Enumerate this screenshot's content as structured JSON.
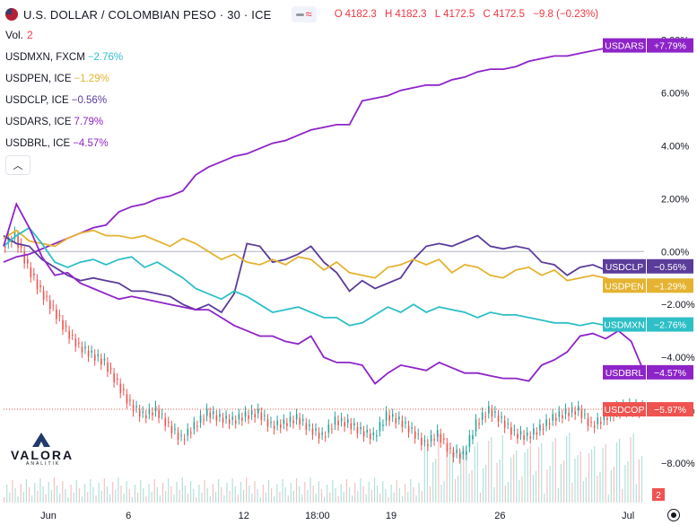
{
  "header": {
    "title": "U.S. DOLLAR / COLOMBIAN PESO · 30 · ICE",
    "ohlc": {
      "o_label": "O",
      "o": "4182.3",
      "h_label": "H",
      "h": "4182.3",
      "l_label": "L",
      "l": "4172.5",
      "c_label": "C",
      "c": "4172.5",
      "change": "−9.8 (−0.23%)"
    }
  },
  "volume": {
    "label": "Vol.",
    "value": "2"
  },
  "legend": [
    {
      "symbol": "USDMXN, FXCM",
      "change": "−2.76%",
      "color": "#2ebfc7"
    },
    {
      "symbol": "USDPEN, ICE",
      "change": "−1.29%",
      "color": "#e5b331"
    },
    {
      "symbol": "USDCLP, ICE",
      "change": "−0.56%",
      "color": "#5b3c9a"
    },
    {
      "symbol": "USDARS, ICE",
      "change": "7.79%",
      "color": "#8e24c8"
    },
    {
      "symbol": "USDBRL, ICE",
      "change": "−4.57%",
      "color": "#8e24c8"
    }
  ],
  "logo": {
    "name": "VALORA",
    "subtitle": "ANALITIK"
  },
  "icons": {
    "collapse": "chevron-up-icon",
    "settings": "settings-icon",
    "flag": "us-flag-icon"
  },
  "chart_data": {
    "type": "line",
    "y_axis": {
      "ticks": [
        "8.00%",
        "6.00%",
        "4.00%",
        "2.00%",
        "0.00%",
        "−2.00%",
        "−4.00%",
        "−6.00%",
        "−8.00%"
      ],
      "range": [
        -9.5,
        8.5
      ],
      "unit": "%"
    },
    "x_axis": {
      "ticks": [
        "Jun",
        "6",
        "12",
        "18:00",
        "19",
        "26",
        "Jul"
      ]
    },
    "volume_badge": "2",
    "series": [
      {
        "name": "USDARS",
        "end_label": "+7.79%",
        "color": "#8e24c8",
        "x": [
          0,
          2,
          4,
          6,
          8,
          10,
          12,
          14,
          16,
          18,
          20,
          22,
          24,
          26,
          28,
          30,
          32,
          34,
          36,
          38,
          40,
          42,
          44,
          46,
          48,
          50,
          52,
          54,
          56,
          58,
          60,
          62,
          64,
          66,
          68,
          70,
          72,
          74,
          76,
          78,
          80,
          82,
          84,
          86,
          88,
          90,
          92,
          94,
          96,
          98,
          100
        ],
        "y": [
          -0.4,
          -0.2,
          -0.1,
          0.1,
          0.3,
          0.5,
          0.7,
          0.9,
          1.0,
          1.5,
          1.7,
          1.8,
          2.0,
          2.1,
          2.3,
          2.9,
          3.2,
          3.4,
          3.6,
          3.7,
          3.9,
          4.1,
          4.2,
          4.4,
          4.6,
          4.7,
          4.8,
          4.8,
          5.7,
          5.8,
          5.9,
          6.1,
          6.2,
          6.3,
          6.3,
          6.5,
          6.6,
          6.8,
          6.9,
          6.9,
          7.0,
          7.2,
          7.3,
          7.4,
          7.4,
          7.5,
          7.6,
          7.7,
          7.8,
          7.8,
          7.8
        ]
      },
      {
        "name": "USDCLP",
        "end_label": "−0.56%",
        "color": "#5b3c9a",
        "x": [
          0,
          2,
          4,
          6,
          8,
          10,
          12,
          14,
          16,
          18,
          20,
          22,
          24,
          26,
          28,
          30,
          32,
          34,
          36,
          38,
          40,
          42,
          44,
          46,
          48,
          50,
          52,
          54,
          56,
          58,
          60,
          62,
          64,
          66,
          68,
          70,
          72,
          74,
          76,
          78,
          80,
          82,
          84,
          86,
          88,
          90,
          92,
          94,
          96,
          98,
          100
        ],
        "y": [
          0.6,
          0.3,
          0.2,
          -0.3,
          -0.6,
          -0.9,
          -1.1,
          -1.0,
          -1.1,
          -1.2,
          -1.5,
          -1.5,
          -1.6,
          -1.7,
          -2.0,
          -2.2,
          -2.0,
          -2.3,
          -1.6,
          0.3,
          0.2,
          -0.4,
          -0.3,
          -0.1,
          0.2,
          -0.4,
          -0.8,
          -1.5,
          -1.1,
          -1.4,
          -1.2,
          -1.0,
          -0.3,
          0.2,
          0.3,
          0.2,
          0.4,
          0.6,
          0.2,
          0.1,
          0.2,
          0.1,
          -0.4,
          -0.5,
          -0.9,
          -0.6,
          -0.5,
          -0.7,
          -0.4,
          -0.5,
          -0.56
        ]
      },
      {
        "name": "USDPEN",
        "end_label": "−1.29%",
        "color": "#e5b331",
        "x": [
          0,
          2,
          4,
          6,
          8,
          10,
          12,
          14,
          16,
          18,
          20,
          22,
          24,
          26,
          28,
          30,
          32,
          34,
          36,
          38,
          40,
          42,
          44,
          46,
          48,
          50,
          52,
          54,
          56,
          58,
          60,
          62,
          64,
          66,
          68,
          70,
          72,
          74,
          76,
          78,
          80,
          82,
          84,
          86,
          88,
          90,
          92,
          94,
          96,
          98,
          100
        ],
        "y": [
          0.5,
          0.8,
          0.4,
          0.3,
          0.2,
          0.5,
          0.7,
          0.8,
          0.6,
          0.6,
          0.5,
          0.6,
          0.4,
          0.2,
          0.5,
          0.3,
          0.0,
          -0.3,
          -0.1,
          -0.4,
          -0.5,
          -0.3,
          -0.5,
          -0.2,
          -0.3,
          -0.7,
          -0.4,
          -0.8,
          -0.9,
          -1.0,
          -0.6,
          -0.5,
          -0.3,
          -0.5,
          -0.3,
          -0.8,
          -0.5,
          -0.6,
          -0.9,
          -1.0,
          -0.7,
          -0.6,
          -0.9,
          -0.7,
          -1.1,
          -1.0,
          -0.9,
          -1.0,
          -1.2,
          -1.3,
          -1.29
        ]
      },
      {
        "name": "USDMXN",
        "end_label": "−2.76%",
        "color": "#2ebfc7",
        "x": [
          0,
          2,
          4,
          6,
          8,
          10,
          12,
          14,
          16,
          18,
          20,
          22,
          24,
          26,
          28,
          30,
          32,
          34,
          36,
          38,
          40,
          42,
          44,
          46,
          48,
          50,
          52,
          54,
          56,
          58,
          60,
          62,
          64,
          66,
          68,
          70,
          72,
          74,
          76,
          78,
          80,
          82,
          84,
          86,
          88,
          90,
          92,
          94,
          96,
          98,
          100
        ],
        "y": [
          0.2,
          0.6,
          0.9,
          0.3,
          -0.4,
          -0.6,
          -0.4,
          -0.3,
          -0.5,
          -0.3,
          -0.2,
          -0.6,
          -0.4,
          -0.7,
          -1.0,
          -1.4,
          -1.6,
          -1.8,
          -1.5,
          -1.7,
          -2.0,
          -2.3,
          -2.2,
          -2.1,
          -2.3,
          -2.5,
          -2.5,
          -2.8,
          -2.7,
          -2.4,
          -2.1,
          -2.3,
          -2.0,
          -2.3,
          -2.1,
          -2.2,
          -2.3,
          -2.5,
          -2.3,
          -2.4,
          -2.4,
          -2.5,
          -2.6,
          -2.7,
          -2.7,
          -2.8,
          -2.7,
          -2.8,
          -2.6,
          -2.8,
          -2.76
        ]
      },
      {
        "name": "USDBRL",
        "end_label": "−4.57%",
        "color": "#8e24c8",
        "x": [
          0,
          2,
          4,
          6,
          8,
          10,
          12,
          14,
          16,
          18,
          20,
          22,
          24,
          26,
          28,
          30,
          32,
          34,
          36,
          38,
          40,
          42,
          44,
          46,
          48,
          50,
          52,
          54,
          56,
          58,
          60,
          62,
          64,
          66,
          68,
          70,
          72,
          74,
          76,
          78,
          80,
          82,
          84,
          86,
          88,
          90,
          92,
          94,
          96,
          98,
          100
        ],
        "y": [
          0.2,
          1.8,
          0.9,
          -0.2,
          -0.9,
          -0.8,
          -1.2,
          -1.4,
          -1.6,
          -1.8,
          -1.7,
          -1.8,
          -1.9,
          -2.0,
          -2.1,
          -2.2,
          -2.2,
          -2.5,
          -2.8,
          -3.0,
          -3.2,
          -3.2,
          -3.4,
          -3.5,
          -3.2,
          -4.0,
          -4.2,
          -4.2,
          -4.3,
          -5.0,
          -4.6,
          -4.3,
          -4.4,
          -4.5,
          -4.2,
          -4.4,
          -4.6,
          -4.6,
          -4.7,
          -4.8,
          -4.8,
          -4.9,
          -4.3,
          -4.1,
          -3.8,
          -3.2,
          -3.1,
          -3.3,
          -3.0,
          -3.4,
          -4.57
        ]
      },
      {
        "name": "USDCOP",
        "end_label": "−5.97%",
        "color": "#ef5350",
        "style": "candles",
        "x": [
          0,
          2,
          4,
          6,
          8,
          10,
          12,
          14,
          16,
          18,
          20,
          22,
          24,
          26,
          28,
          30,
          32,
          34,
          36,
          38,
          40,
          42,
          44,
          46,
          48,
          50,
          52,
          54,
          56,
          58,
          60,
          62,
          64,
          66,
          68,
          70,
          72,
          74,
          76,
          78,
          80,
          82,
          84,
          86,
          88,
          90,
          92,
          94,
          96,
          98,
          100
        ],
        "y": [
          0.2,
          0.6,
          -0.6,
          -1.5,
          -2.2,
          -3.0,
          -3.6,
          -3.9,
          -4.2,
          -5.0,
          -5.8,
          -6.2,
          -6.0,
          -6.6,
          -7.1,
          -6.6,
          -6.1,
          -6.3,
          -6.4,
          -6.2,
          -6.1,
          -6.6,
          -6.5,
          -6.3,
          -6.7,
          -7.0,
          -6.4,
          -6.5,
          -6.8,
          -7.0,
          -6.2,
          -6.4,
          -6.8,
          -7.3,
          -6.9,
          -7.6,
          -7.7,
          -6.5,
          -6.0,
          -6.4,
          -6.9,
          -7.0,
          -6.7,
          -6.3,
          -6.1,
          -6.0,
          -6.6,
          -6.3,
          -6.0,
          -5.9,
          -5.97
        ]
      }
    ],
    "reference_line": 0,
    "last_price_line": -5.97
  }
}
